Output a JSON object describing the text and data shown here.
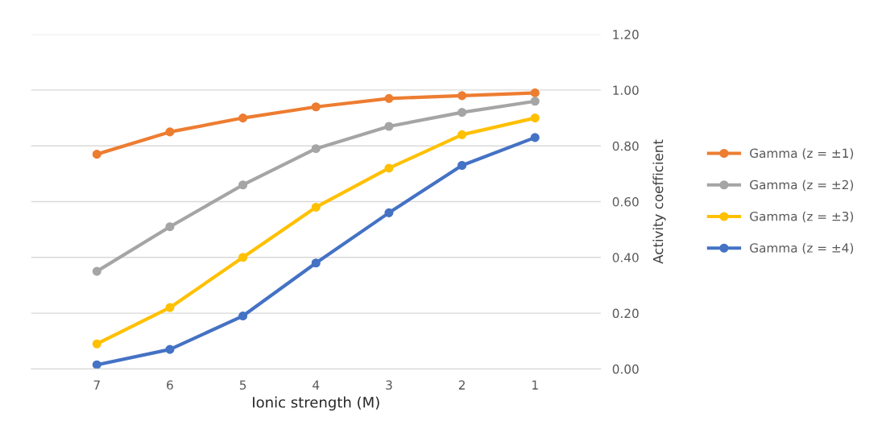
{
  "chart_data": {
    "type": "line",
    "xlabel": "Ionic strength (M)",
    "ylabel": "Activity coefficient",
    "categories": [
      "7",
      "6",
      "5",
      "4",
      "3",
      "2",
      "1"
    ],
    "series": [
      {
        "name": "Gamma (z = ±1)",
        "color": "#ed7d31",
        "values": [
          0.77,
          0.85,
          0.9,
          0.94,
          0.97,
          0.98,
          0.99
        ]
      },
      {
        "name": "Gamma (z = ±2)",
        "color": "#a5a5a5",
        "values": [
          0.35,
          0.51,
          0.66,
          0.79,
          0.87,
          0.92,
          0.96
        ]
      },
      {
        "name": "Gamma (z = ±3)",
        "color": "#ffc000",
        "values": [
          0.09,
          0.22,
          0.4,
          0.58,
          0.72,
          0.84,
          0.9
        ]
      },
      {
        "name": "Gamma (z = ±4)",
        "color": "#4472c4",
        "values": [
          0.015,
          0.07,
          0.19,
          0.38,
          0.56,
          0.73,
          0.83
        ]
      }
    ],
    "ylim": [
      0,
      1.2
    ],
    "yticks": [
      {
        "value": 0,
        "label": "0.00"
      },
      {
        "value": 0.2,
        "label": "0.20"
      },
      {
        "value": 0.4,
        "label": "0.40"
      },
      {
        "value": 0.6,
        "label": "0.60"
      },
      {
        "value": 0.8,
        "label": "0.80"
      },
      {
        "value": 1.0,
        "label": "1.00"
      },
      {
        "value": 1.2,
        "label": "1.20"
      }
    ],
    "grid": "y",
    "legend": "right",
    "marker": "circle",
    "line_style": "solid"
  }
}
